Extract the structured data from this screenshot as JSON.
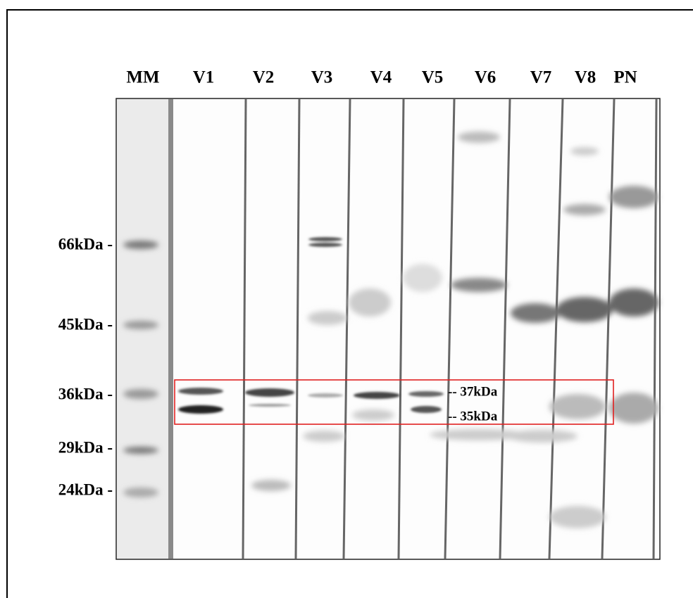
{
  "lanes": [
    "MM",
    "V1",
    "V2",
    "V3",
    "V4",
    "V5",
    "V6",
    "V7",
    "V8",
    "PN"
  ],
  "markers": [
    "66kDa -",
    "45kDa -",
    "36kDa -",
    "29kDa -",
    "24kDa -"
  ],
  "annotations": [
    "-- 37kDa",
    "-- 35kDa"
  ]
}
